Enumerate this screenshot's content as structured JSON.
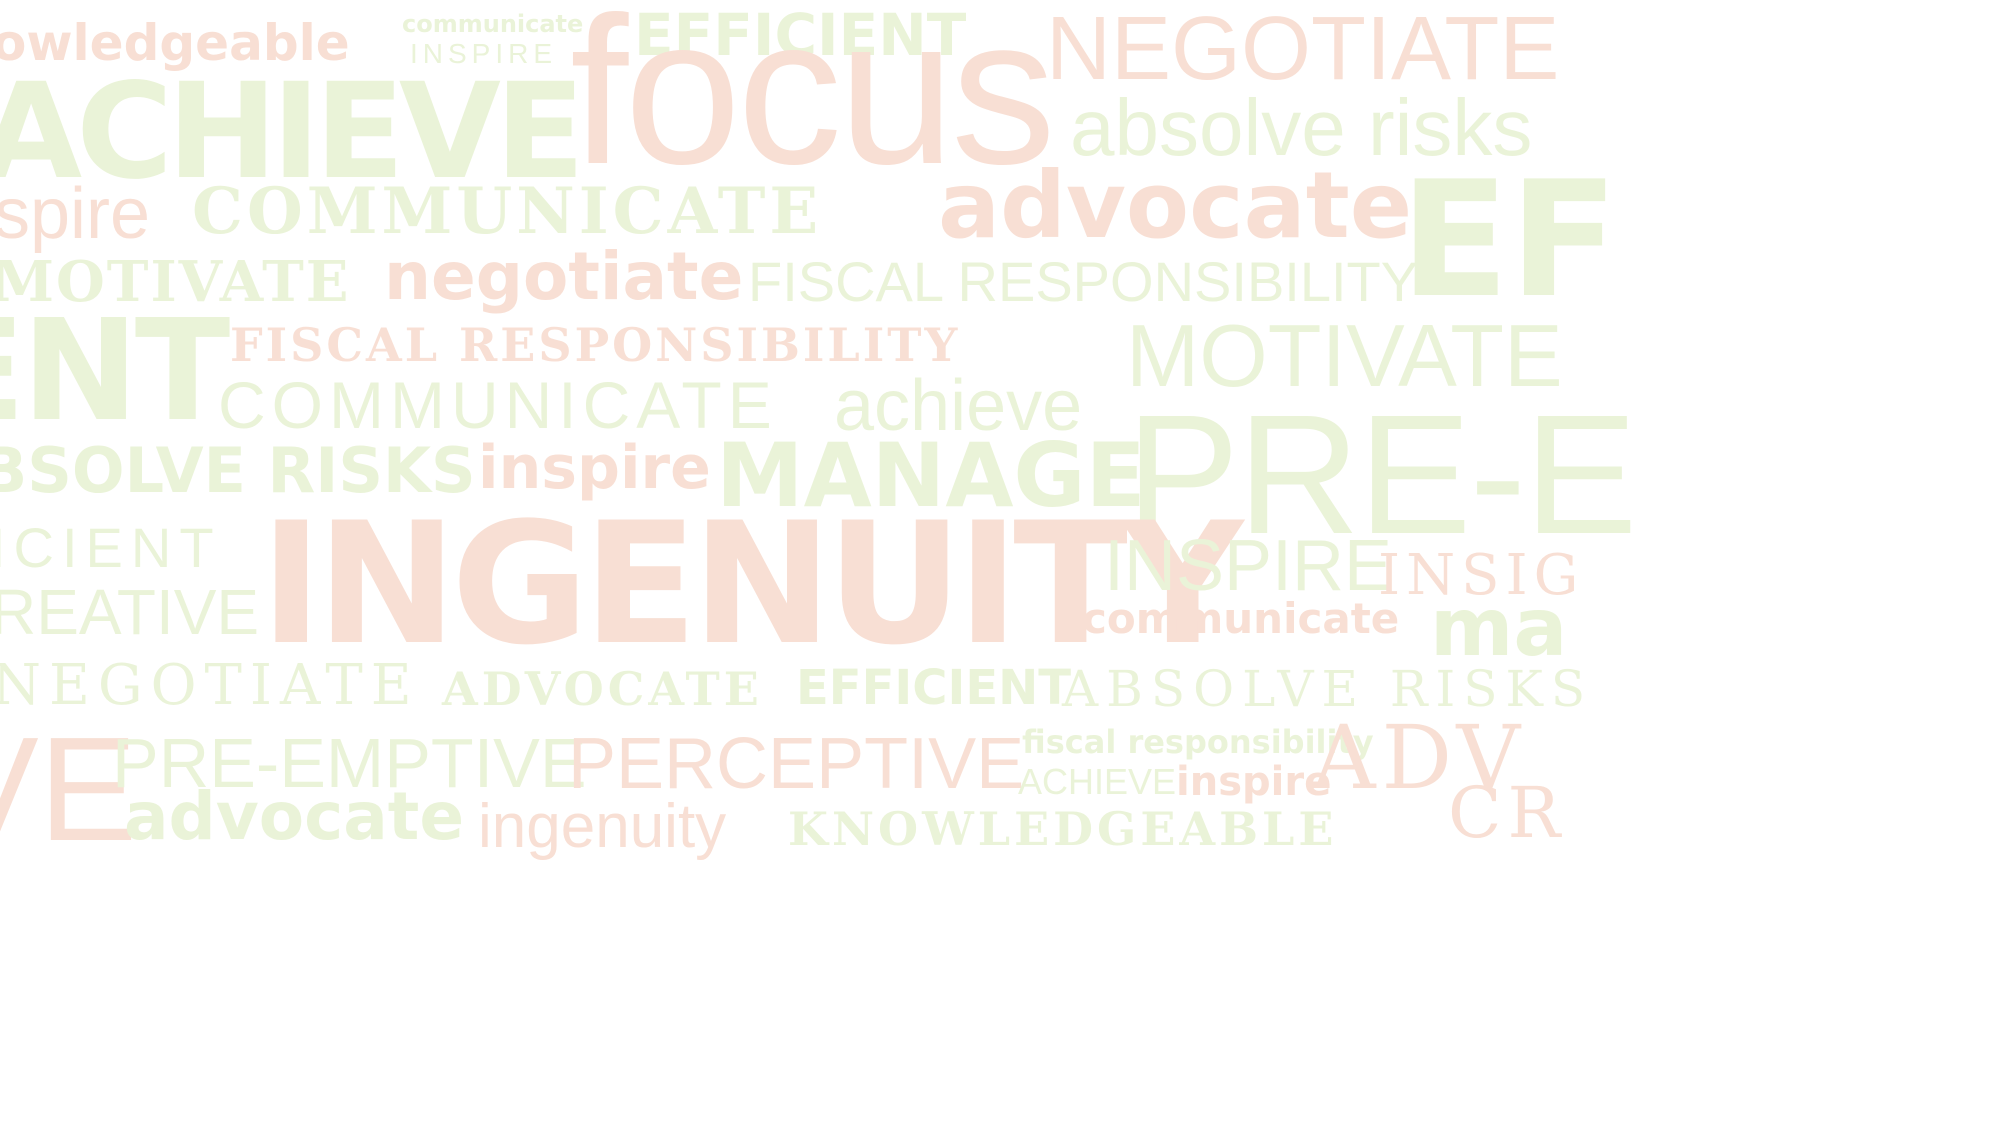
{
  "words": [
    {
      "id": "w1",
      "text": "owledgeable",
      "color": "#f8dfd4"
    },
    {
      "id": "w2",
      "text": "communicate",
      "color": "#eaf3d8"
    },
    {
      "id": "w3",
      "text": "INSPIRE",
      "color": "#eaf3d8"
    },
    {
      "id": "w4",
      "text": "EFFICIENT",
      "color": "#eaf3d8"
    },
    {
      "id": "w5",
      "text": "NEGOTIATE",
      "color": "#f8dfd4"
    },
    {
      "id": "w6",
      "text": "ACHIEVE",
      "color": "#eaf3d8"
    },
    {
      "id": "w7",
      "text": "focus",
      "color": "#f8dfd4"
    },
    {
      "id": "w8",
      "text": "absolve risks",
      "color": "#eaf3d8"
    },
    {
      "id": "w9",
      "text": "spire",
      "color": "#f8dfd4"
    },
    {
      "id": "w10",
      "text": "COMMUNICATE",
      "color": "#eaf3d8"
    },
    {
      "id": "w11",
      "text": "advocate",
      "color": "#f8dfd4"
    },
    {
      "id": "w12",
      "text": "EF",
      "color": "#eaf3d8"
    },
    {
      "id": "w13",
      "text": "MOTIVATE",
      "color": "#eaf3d8"
    },
    {
      "id": "w14",
      "text": "negotiate",
      "color": "#f8dfd4"
    },
    {
      "id": "w15",
      "text": "FISCAL RESPONSIBILITY",
      "color": "#eaf3d8"
    },
    {
      "id": "w16",
      "text": "ENT",
      "color": "#eaf3d8"
    },
    {
      "id": "w17",
      "text": "FISCAL RESPONSIBILITY",
      "color": "#f8dfd4"
    },
    {
      "id": "w18",
      "text": "MOTIVATE",
      "color": "#eaf3d8"
    },
    {
      "id": "w19",
      "text": "COMMUNICATE",
      "color": "#eaf3d8"
    },
    {
      "id": "w20",
      "text": "achieve",
      "color": "#eaf3d8"
    },
    {
      "id": "w21",
      "text": "PRE-E",
      "color": "#eaf3d8"
    },
    {
      "id": "w22",
      "text": "BSOLVE RISKS",
      "color": "#eaf3d8"
    },
    {
      "id": "w23",
      "text": "inspire",
      "color": "#f8dfd4"
    },
    {
      "id": "w24",
      "text": "MANAGE",
      "color": "#eaf3d8"
    },
    {
      "id": "w25",
      "text": "ICIENT",
      "color": "#eaf3d8"
    },
    {
      "id": "w26",
      "text": "INGENUITY",
      "color": "#f8dfd4"
    },
    {
      "id": "w27",
      "text": "INSPIRE",
      "color": "#eaf3d8"
    },
    {
      "id": "w28",
      "text": "INSIG",
      "color": "#f8dfd4"
    },
    {
      "id": "w29",
      "text": "REATIVE",
      "color": "#eaf3d8"
    },
    {
      "id": "w30",
      "text": "communicate",
      "color": "#f8dfd4"
    },
    {
      "id": "w31",
      "text": "ma",
      "color": "#eaf3d8"
    },
    {
      "id": "w32",
      "text": "NEGOTIATE",
      "color": "#eaf3d8"
    },
    {
      "id": "w33",
      "text": "ADVOCATE",
      "color": "#eaf3d8"
    },
    {
      "id": "w34",
      "text": "EFFICIENT",
      "color": "#eaf3d8"
    },
    {
      "id": "w35",
      "text": "ABSOLVE RISKS",
      "color": "#eaf3d8"
    },
    {
      "id": "w36",
      "text": "VE",
      "color": "#f8dfd4"
    },
    {
      "id": "w37",
      "text": "PRE-EMPTIVE",
      "color": "#eaf3d8"
    },
    {
      "id": "w38",
      "text": "PERCEPTIVE",
      "color": "#f8dfd4"
    },
    {
      "id": "w39",
      "text": "fiscal responsibility",
      "color": "#eaf3d8"
    },
    {
      "id": "w40",
      "text": "ACHIEVE",
      "color": "#eaf3d8"
    },
    {
      "id": "w41",
      "text": "inspire",
      "color": "#f8dfd4"
    },
    {
      "id": "w42",
      "text": "ADV",
      "color": "#f8dfd4"
    },
    {
      "id": "w43",
      "text": "advocate",
      "color": "#eaf3d8"
    },
    {
      "id": "w44",
      "text": "ingenuity",
      "color": "#f8dfd4"
    },
    {
      "id": "w45",
      "text": "KNOWLEDGEABLE",
      "color": "#eaf3d8"
    },
    {
      "id": "w46",
      "text": "CR",
      "color": "#f8dfd4"
    }
  ]
}
